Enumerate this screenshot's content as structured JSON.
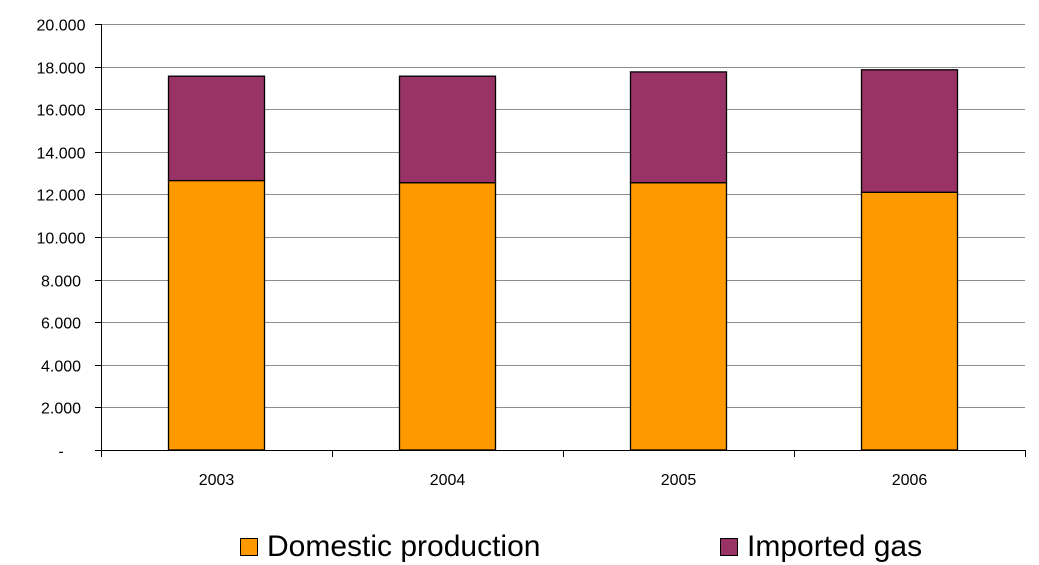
{
  "chart_data": {
    "type": "bar",
    "stacked": true,
    "categories": [
      "2003",
      "2004",
      "2005",
      "2006"
    ],
    "series": [
      {
        "name": "Domestic production",
        "color": "#FF9900",
        "values": [
          12650,
          12550,
          12550,
          12100
        ]
      },
      {
        "name": "Imported gas",
        "color": "#993366",
        "values": [
          4900,
          5000,
          5200,
          5750
        ]
      }
    ],
    "ylim": [
      0,
      20000
    ],
    "yticks": [
      {
        "value": 0,
        "label": "-"
      },
      {
        "value": 2000,
        "label": "2.000"
      },
      {
        "value": 4000,
        "label": "4.000"
      },
      {
        "value": 6000,
        "label": "6.000"
      },
      {
        "value": 8000,
        "label": "8.000"
      },
      {
        "value": 10000,
        "label": "10.000"
      },
      {
        "value": 12000,
        "label": "12.000"
      },
      {
        "value": 14000,
        "label": "14.000"
      },
      {
        "value": 16000,
        "label": "16.000"
      },
      {
        "value": 18000,
        "label": "18.000"
      },
      {
        "value": 20000,
        "label": "20.000"
      }
    ],
    "grid": true,
    "legend_position": "bottom",
    "title": "",
    "xlabel": "",
    "ylabel": ""
  }
}
